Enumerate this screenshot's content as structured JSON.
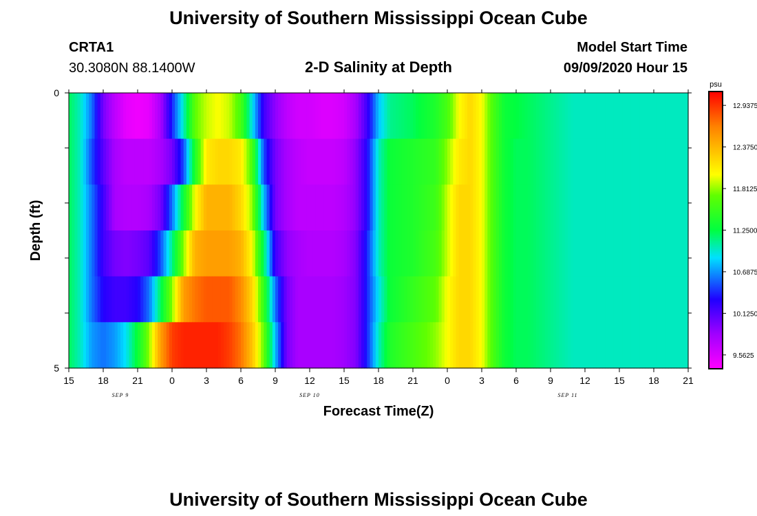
{
  "header": {
    "title": "University of Southern Mississippi Ocean Cube",
    "station_id": "CRTA1",
    "station_coords": "30.3080N 88.1400W",
    "chart_title": "2-D Salinity at Depth",
    "model_label": "Model Start Time",
    "model_time": "09/09/2020 Hour 15"
  },
  "footer": {
    "title": "University of Southern Mississippi Ocean Cube"
  },
  "chart_data": {
    "type": "heatmap",
    "title": "2-D Salinity at Depth",
    "xlabel": "Forecast Time(Z)",
    "ylabel": "Depth (ft)",
    "x_tick_labels": [
      "15",
      "18",
      "21",
      "0",
      "3",
      "6",
      "9",
      "12",
      "15",
      "18",
      "21",
      "0",
      "3",
      "6",
      "9",
      "12",
      "15",
      "18",
      "21"
    ],
    "date_labels": [
      {
        "label": "SEP 9",
        "tick_index": 1.5
      },
      {
        "label": "SEP 10",
        "tick_index": 7
      },
      {
        "label": "SEP 11",
        "tick_index": 14.5
      }
    ],
    "y_tick_labels": [
      "0",
      "5"
    ],
    "ylim": [
      0,
      5
    ],
    "colorbar": {
      "unit": "psu",
      "labels": [
        "12.9375",
        "12.3750",
        "11.8125",
        "11.2500",
        "10.6875",
        "10.1250",
        "9.5625"
      ],
      "vmin": 9.375,
      "vmax": 13.125
    },
    "forecast_hours": [
      0,
      3,
      6,
      9,
      12,
      15,
      18,
      21,
      24,
      27,
      30,
      33,
      36,
      39,
      42,
      45,
      48,
      51,
      54
    ],
    "depth_rows": [
      {
        "depth": 0,
        "hours": [
          0,
          1,
          2,
          3,
          4,
          5,
          6,
          7,
          8,
          8.5,
          9,
          10,
          11,
          12,
          13,
          14,
          15,
          16,
          17,
          18,
          19,
          20,
          21,
          22,
          23,
          24,
          25,
          26,
          27,
          28,
          30,
          32,
          33,
          34,
          35,
          36,
          37,
          38,
          39,
          40,
          41,
          42,
          43,
          44,
          45,
          46,
          47,
          48,
          49,
          50,
          51,
          52,
          53,
          54
        ],
        "salinity": [
          11.2,
          11.0,
          10.6,
          10.0,
          9.7,
          9.5,
          9.45,
          9.5,
          9.8,
          10.1,
          10.4,
          11.0,
          11.7,
          11.9,
          12.0,
          11.9,
          11.6,
          10.9,
          10.2,
          9.9,
          9.7,
          9.6,
          9.6,
          9.55,
          9.55,
          9.6,
          9.8,
          10.2,
          10.8,
          11.1,
          11.2,
          11.4,
          11.6,
          12.0,
          12.2,
          12.0,
          11.6,
          11.3,
          11.25,
          11.2,
          11.15,
          11.1,
          11.05,
          11.0,
          11.0,
          11.0,
          11.0,
          11.0,
          11.0,
          11.0,
          11.0,
          11.0,
          11.0,
          11.0
        ]
      },
      {
        "depth": 1,
        "hours": [
          0,
          1,
          2,
          3,
          4,
          5,
          6,
          7,
          8,
          9,
          10,
          11,
          12,
          13,
          14,
          15,
          16,
          17,
          18,
          19,
          20,
          21,
          22,
          23,
          24,
          25,
          26,
          27,
          28,
          30,
          32,
          33,
          34,
          35,
          36,
          37,
          38,
          39,
          40,
          41,
          42,
          43,
          44,
          45,
          46,
          47,
          48,
          49,
          50,
          51,
          52,
          53,
          54
        ],
        "salinity": [
          11.2,
          11.0,
          10.5,
          10.1,
          9.8,
          9.7,
          9.7,
          9.7,
          9.8,
          10.0,
          10.5,
          11.4,
          12.1,
          12.2,
          12.2,
          12.1,
          11.6,
          10.5,
          10.0,
          9.8,
          9.7,
          9.65,
          9.65,
          9.65,
          9.7,
          9.9,
          10.3,
          11.0,
          11.3,
          11.4,
          11.5,
          11.8,
          12.1,
          12.2,
          12.0,
          11.6,
          11.3,
          11.2,
          11.2,
          11.15,
          11.1,
          11.05,
          11.0,
          11.0,
          11.0,
          11.0,
          11.0,
          11.0,
          11.0,
          11.0,
          11.0,
          11.0,
          11.0
        ]
      },
      {
        "depth": 2,
        "hours": [
          0,
          1,
          2,
          3,
          4,
          5,
          6,
          7,
          8,
          9,
          10,
          11,
          12,
          13,
          14,
          15,
          16,
          17,
          18,
          19,
          20,
          21,
          22,
          23,
          24,
          25,
          26,
          27,
          28,
          30,
          32,
          33,
          34,
          35,
          36,
          37,
          38,
          39,
          40,
          41,
          42,
          43,
          44,
          45,
          46,
          47,
          48,
          49,
          50,
          51,
          52,
          53,
          54
        ],
        "salinity": [
          11.2,
          11.0,
          10.6,
          10.2,
          9.8,
          9.75,
          9.75,
          9.8,
          10.0,
          10.6,
          11.3,
          12.0,
          12.4,
          12.4,
          12.4,
          12.2,
          11.8,
          10.8,
          10.0,
          9.8,
          9.7,
          9.7,
          9.7,
          9.7,
          9.75,
          9.9,
          10.3,
          11.0,
          11.3,
          11.4,
          11.55,
          11.9,
          12.2,
          12.2,
          12.0,
          11.6,
          11.3,
          11.2,
          11.2,
          11.15,
          11.1,
          11.05,
          11.0,
          11.0,
          11.0,
          11.0,
          11.0,
          11.0,
          11.0,
          11.0,
          11.0,
          11.0,
          11.0
        ]
      },
      {
        "depth": 3,
        "hours": [
          0,
          1,
          2,
          3,
          4,
          5,
          6,
          7,
          8,
          9,
          10,
          11,
          12,
          13,
          14,
          15,
          16,
          17,
          18,
          19,
          20,
          21,
          22,
          23,
          24,
          25,
          26,
          27,
          28,
          30,
          32,
          33,
          34,
          35,
          36,
          37,
          38,
          39,
          40,
          41,
          42,
          43,
          44,
          45,
          46,
          47,
          48,
          49,
          50,
          51,
          52,
          53,
          54
        ],
        "salinity": [
          11.2,
          11.0,
          10.6,
          10.2,
          10.0,
          9.95,
          10.0,
          10.1,
          10.5,
          11.1,
          11.8,
          12.4,
          12.5,
          12.5,
          12.5,
          12.4,
          12.0,
          11.2,
          10.2,
          9.9,
          9.8,
          9.75,
          9.75,
          9.75,
          9.8,
          9.95,
          10.4,
          11.0,
          11.3,
          11.4,
          11.6,
          11.9,
          12.2,
          12.2,
          12.0,
          11.6,
          11.3,
          11.2,
          11.2,
          11.15,
          11.1,
          11.05,
          11.0,
          11.0,
          11.0,
          11.0,
          11.0,
          11.0,
          11.0,
          11.0,
          11.0,
          11.0,
          11.0
        ]
      },
      {
        "depth": 4,
        "hours": [
          0,
          1,
          2,
          3,
          4,
          5,
          6,
          7,
          8,
          9,
          10,
          11,
          12,
          13,
          14,
          15,
          16,
          17,
          18,
          19,
          20,
          21,
          22,
          23,
          24,
          25,
          26,
          27,
          28,
          30,
          32,
          33,
          34,
          35,
          36,
          37,
          38,
          39,
          40,
          41,
          42,
          43,
          44,
          45,
          46,
          47,
          48,
          49,
          50,
          51,
          52,
          53,
          54
        ],
        "salinity": [
          11.2,
          11.0,
          10.6,
          10.3,
          10.2,
          10.2,
          10.3,
          10.6,
          11.2,
          11.8,
          12.5,
          12.7,
          12.8,
          12.8,
          12.8,
          12.6,
          12.2,
          11.5,
          10.6,
          10.0,
          9.8,
          9.8,
          9.8,
          9.8,
          9.85,
          9.95,
          10.4,
          10.9,
          11.3,
          11.5,
          11.7,
          12.0,
          12.2,
          12.2,
          12.0,
          11.6,
          11.3,
          11.2,
          11.2,
          11.15,
          11.1,
          11.05,
          11.0,
          11.0,
          11.0,
          11.0,
          11.0,
          11.0,
          11.0,
          11.0,
          11.0,
          11.0,
          11.0
        ]
      },
      {
        "depth": 5,
        "hours": [
          0,
          1,
          2,
          3,
          4,
          5,
          6,
          7,
          8,
          9,
          10,
          11,
          12,
          13,
          14,
          15,
          16,
          17,
          18,
          19,
          20,
          21,
          22,
          23,
          24,
          25,
          26,
          27,
          28,
          30,
          32,
          33,
          34,
          35,
          36,
          37,
          38,
          39,
          40,
          41,
          42,
          43,
          44,
          45,
          46,
          47,
          48,
          49,
          50,
          51,
          52,
          53,
          54
        ],
        "salinity": [
          11.2,
          11.0,
          10.7,
          10.6,
          10.7,
          10.9,
          11.3,
          11.8,
          12.5,
          12.9,
          13.0,
          13.0,
          13.0,
          13.0,
          12.9,
          12.7,
          12.3,
          11.7,
          10.8,
          10.0,
          9.8,
          9.8,
          9.8,
          9.8,
          9.85,
          9.95,
          10.4,
          11.0,
          11.4,
          11.6,
          11.8,
          12.0,
          12.2,
          12.2,
          12.0,
          11.6,
          11.3,
          11.2,
          11.2,
          11.15,
          11.1,
          11.05,
          11.0,
          11.0,
          11.0,
          11.0,
          11.0,
          11.0,
          11.0,
          11.0,
          11.0,
          11.0,
          11.0
        ]
      }
    ]
  }
}
